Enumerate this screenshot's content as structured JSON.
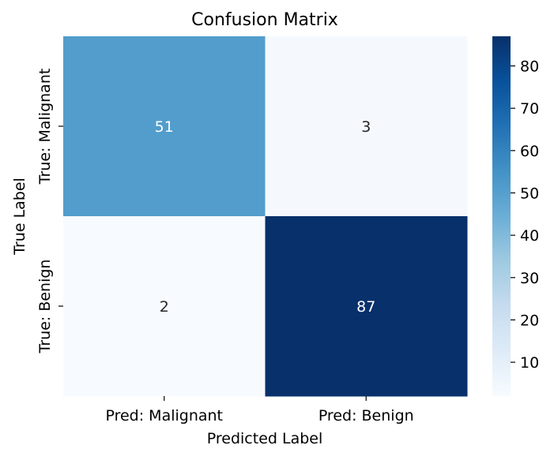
{
  "chart_data": {
    "type": "heatmap",
    "title": "Confusion Matrix",
    "xlabel": "Predicted Label",
    "ylabel": "True Label",
    "x_categories": [
      "Pred: Malignant",
      "Pred: Benign"
    ],
    "y_categories": [
      "True: Malignant",
      "True: Benign"
    ],
    "values": [
      [
        51,
        3
      ],
      [
        2,
        87
      ]
    ],
    "colormap": "Blues",
    "colormap_low": "#f7fbff",
    "colormap_high": "#08306b",
    "colorbar": {
      "range": [
        2,
        87
      ],
      "ticks": [
        10,
        20,
        30,
        40,
        50,
        60,
        70,
        80
      ],
      "tick_labels": [
        "10",
        "20",
        "30",
        "40",
        "50",
        "60",
        "70",
        "80"
      ]
    },
    "annotations": true
  }
}
